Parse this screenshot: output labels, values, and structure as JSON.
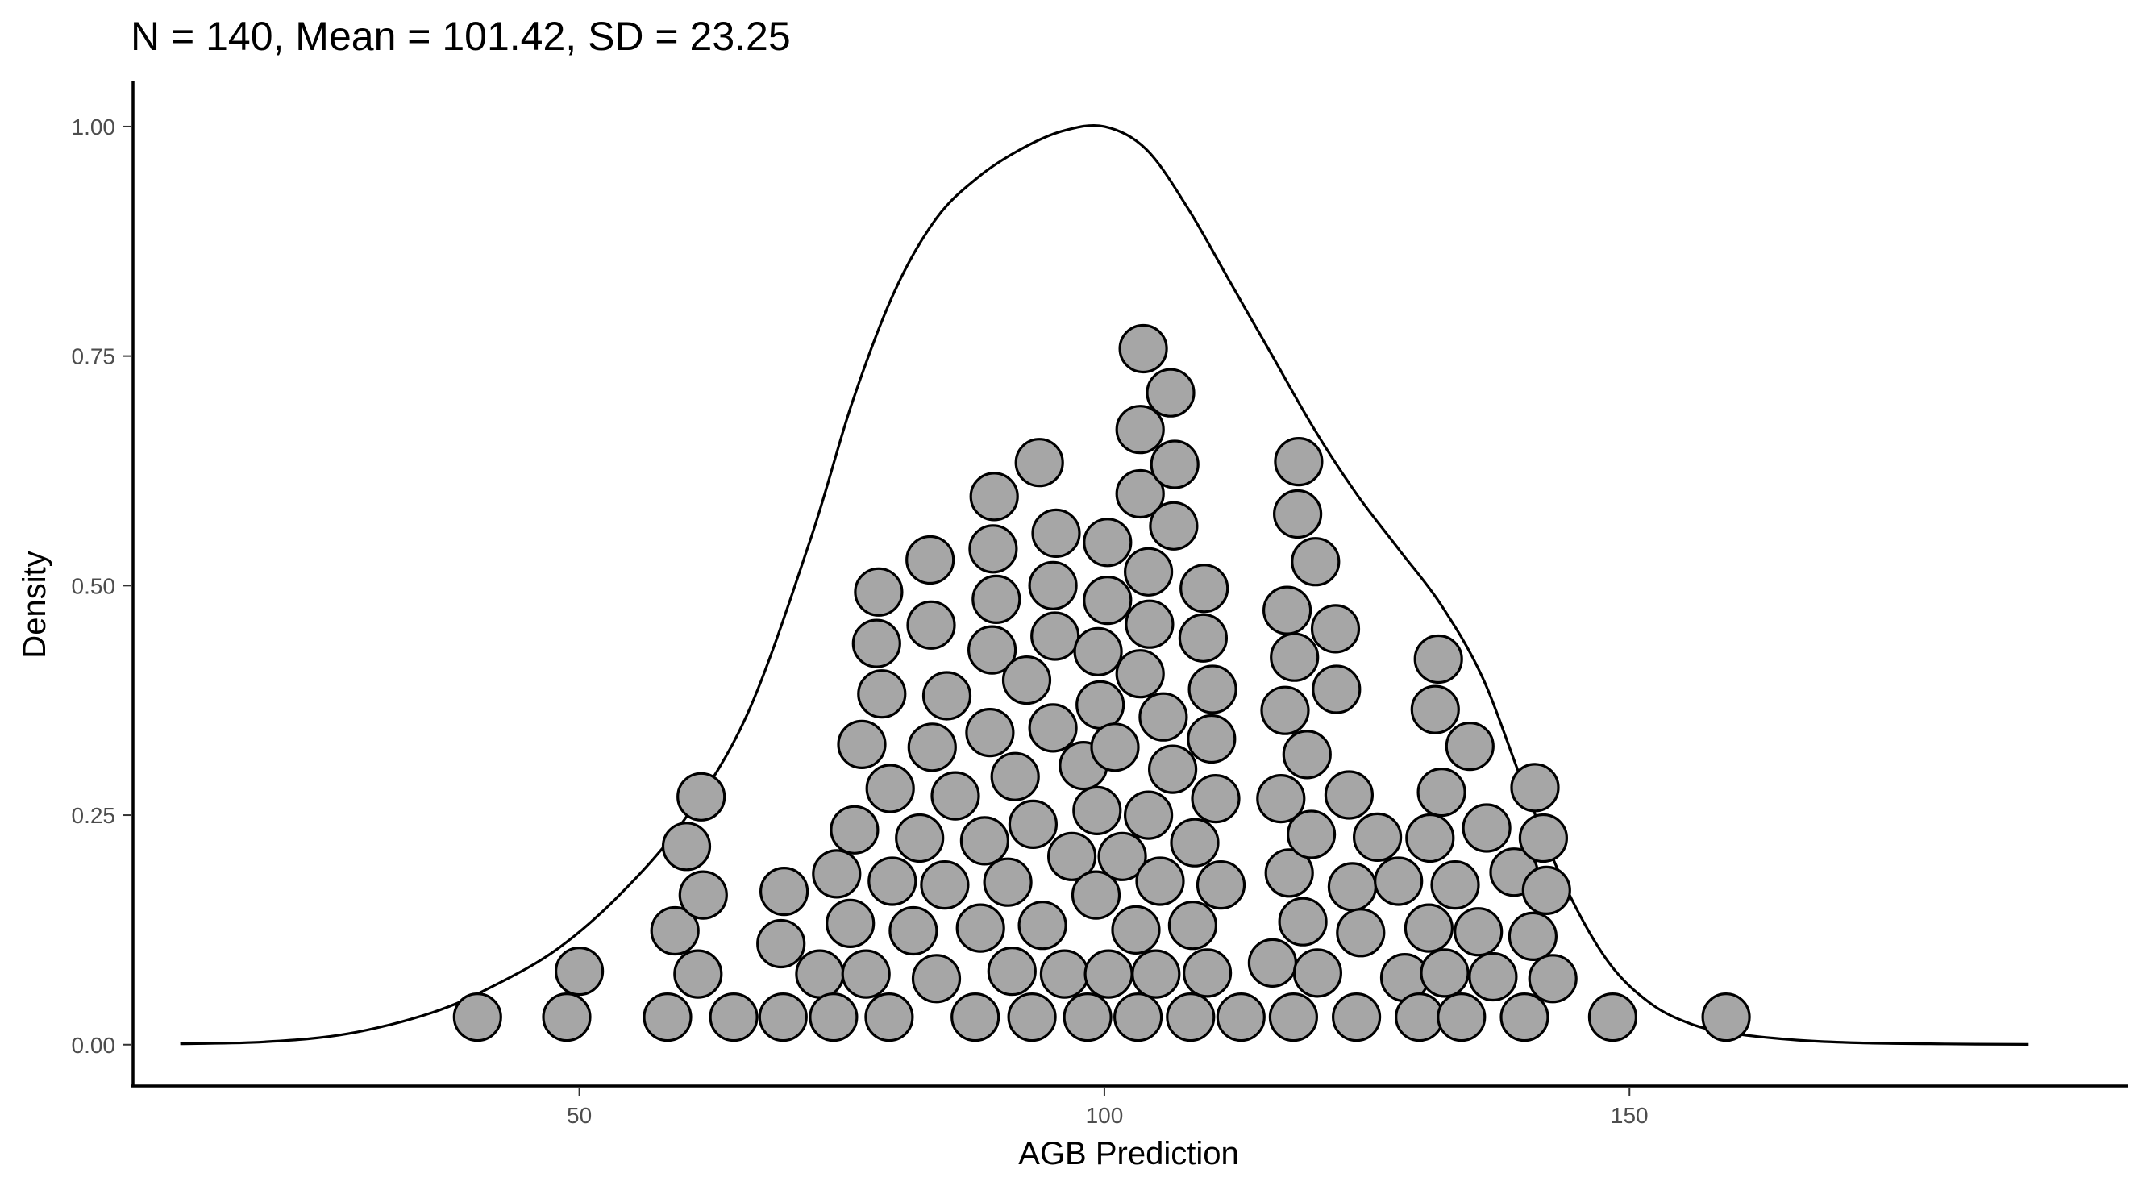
{
  "chart_data": {
    "type": "dotplot",
    "title": "N = 140, Mean = 101.42, SD = 23.25",
    "xlabel": "AGB Prediction",
    "ylabel": "Density",
    "xlim": [
      7.5,
      197.5
    ],
    "ylim": [
      -0.045,
      1.05
    ],
    "x_ticks": [
      50,
      100,
      150
    ],
    "x_tick_labels": [
      "50",
      "100",
      "150"
    ],
    "y_ticks": [
      0,
      0.25,
      0.5,
      0.75,
      1.0
    ],
    "y_tick_labels": [
      "0.00",
      "0.25",
      "0.50",
      "0.75",
      "1.00"
    ],
    "grid": false,
    "dot_fill": "#a6a6a6",
    "dot_stroke": "#000000",
    "density_curve": {
      "x": [
        12,
        20,
        28,
        36,
        42,
        48,
        54,
        60,
        66,
        72,
        76,
        80,
        84,
        88,
        92,
        96,
        100,
        104,
        108,
        112,
        116,
        120,
        124,
        128,
        132,
        136,
        140,
        144,
        148,
        152,
        156,
        160,
        166,
        172,
        180,
        188
      ],
      "y": [
        0.001,
        0.003,
        0.012,
        0.035,
        0.065,
        0.105,
        0.165,
        0.245,
        0.36,
        0.55,
        0.7,
        0.82,
        0.9,
        0.945,
        0.975,
        0.995,
        1.0,
        0.975,
        0.91,
        0.83,
        0.75,
        0.67,
        0.6,
        0.54,
        0.48,
        0.4,
        0.28,
        0.17,
        0.09,
        0.045,
        0.022,
        0.012,
        0.005,
        0.002,
        0.0008,
        0.0003
      ]
    },
    "dots": [
      [
        40.3,
        0.03
      ],
      [
        48.8,
        0.03
      ],
      [
        50.0,
        0.08
      ],
      [
        58.4,
        0.03
      ],
      [
        59.1,
        0.124
      ],
      [
        60.2,
        0.216
      ],
      [
        61.3,
        0.077
      ],
      [
        61.8,
        0.163
      ],
      [
        61.6,
        0.27
      ],
      [
        64.7,
        0.03
      ],
      [
        69.4,
        0.03
      ],
      [
        69.2,
        0.11
      ],
      [
        69.5,
        0.167
      ],
      [
        72.9,
        0.077
      ],
      [
        74.2,
        0.03
      ],
      [
        74.5,
        0.186
      ],
      [
        75.8,
        0.132
      ],
      [
        76.2,
        0.234
      ],
      [
        76.9,
        0.327
      ],
      [
        77.3,
        0.077
      ],
      [
        79.5,
        0.03
      ],
      [
        78.3,
        0.437
      ],
      [
        78.5,
        0.493
      ],
      [
        78.8,
        0.382
      ],
      [
        79.6,
        0.279
      ],
      [
        79.8,
        0.178
      ],
      [
        81.8,
        0.124
      ],
      [
        82.4,
        0.225
      ],
      [
        83.6,
        0.324
      ],
      [
        83.5,
        0.457
      ],
      [
        83.4,
        0.528
      ],
      [
        84.0,
        0.072
      ],
      [
        84.8,
        0.174
      ],
      [
        85.0,
        0.38
      ],
      [
        85.8,
        0.271
      ],
      [
        87.7,
        0.03
      ],
      [
        88.2,
        0.127
      ],
      [
        88.6,
        0.222
      ],
      [
        89.1,
        0.34
      ],
      [
        89.3,
        0.43
      ],
      [
        89.4,
        0.54
      ],
      [
        89.5,
        0.597
      ],
      [
        89.7,
        0.485
      ],
      [
        90.8,
        0.177
      ],
      [
        91.2,
        0.08
      ],
      [
        91.5,
        0.292
      ],
      [
        93.1,
        0.03
      ],
      [
        92.6,
        0.397
      ],
      [
        93.2,
        0.24
      ],
      [
        94.1,
        0.13
      ],
      [
        93.8,
        0.634
      ],
      [
        95.1,
        0.345
      ],
      [
        95.3,
        0.445
      ],
      [
        95.1,
        0.5
      ],
      [
        95.4,
        0.557
      ],
      [
        96.2,
        0.077
      ],
      [
        96.9,
        0.205
      ],
      [
        98.0,
        0.304
      ],
      [
        98.4,
        0.03
      ],
      [
        99.2,
        0.163
      ],
      [
        99.3,
        0.255
      ],
      [
        99.6,
        0.37
      ],
      [
        99.4,
        0.428
      ],
      [
        100.4,
        0.077
      ],
      [
        100.3,
        0.484
      ],
      [
        100.3,
        0.547
      ],
      [
        101.0,
        0.324
      ],
      [
        101.7,
        0.205
      ],
      [
        103.2,
        0.03
      ],
      [
        103.0,
        0.125
      ],
      [
        103.4,
        0.404
      ],
      [
        103.4,
        0.6
      ],
      [
        103.4,
        0.67
      ],
      [
        103.7,
        0.758
      ],
      [
        104.2,
        0.515
      ],
      [
        104.2,
        0.25
      ],
      [
        104.3,
        0.458
      ],
      [
        104.9,
        0.077
      ],
      [
        105.3,
        0.178
      ],
      [
        105.6,
        0.357
      ],
      [
        106.5,
        0.3
      ],
      [
        106.6,
        0.565
      ],
      [
        106.7,
        0.632
      ],
      [
        106.3,
        0.71
      ],
      [
        108.2,
        0.03
      ],
      [
        108.4,
        0.13
      ],
      [
        108.6,
        0.22
      ],
      [
        109.4,
        0.443
      ],
      [
        109.8,
        0.078
      ],
      [
        109.5,
        0.497
      ],
      [
        110.2,
        0.333
      ],
      [
        110.3,
        0.387
      ],
      [
        110.6,
        0.268
      ],
      [
        111.1,
        0.174
      ],
      [
        113.0,
        0.03
      ],
      [
        116.0,
        0.089
      ],
      [
        116.8,
        0.268
      ],
      [
        117.4,
        0.473
      ],
      [
        117.2,
        0.364
      ],
      [
        117.6,
        0.187
      ],
      [
        118.1,
        0.422
      ],
      [
        118.4,
        0.578
      ],
      [
        118.5,
        0.635
      ],
      [
        118.0,
        0.03
      ],
      [
        118.9,
        0.134
      ],
      [
        119.3,
        0.316
      ],
      [
        119.7,
        0.229
      ],
      [
        120.1,
        0.526
      ],
      [
        120.3,
        0.078
      ],
      [
        122.0,
        0.453
      ],
      [
        122.1,
        0.387
      ],
      [
        123.3,
        0.272
      ],
      [
        123.6,
        0.172
      ],
      [
        124.4,
        0.122
      ],
      [
        124.0,
        0.03
      ],
      [
        126.0,
        0.226
      ],
      [
        128.6,
        0.073
      ],
      [
        128.0,
        0.178
      ],
      [
        130.0,
        0.03
      ],
      [
        130.9,
        0.127
      ],
      [
        131.0,
        0.225
      ],
      [
        131.5,
        0.365
      ],
      [
        131.8,
        0.42
      ],
      [
        132.1,
        0.275
      ],
      [
        132.4,
        0.078
      ],
      [
        133.4,
        0.174
      ],
      [
        134.0,
        0.03
      ],
      [
        134.8,
        0.325
      ],
      [
        135.6,
        0.123
      ],
      [
        136.4,
        0.236
      ],
      [
        137.0,
        0.074
      ],
      [
        139.0,
        0.188
      ],
      [
        140.0,
        0.03
      ],
      [
        140.8,
        0.118
      ],
      [
        141.0,
        0.28
      ],
      [
        141.8,
        0.225
      ],
      [
        142.1,
        0.168
      ],
      [
        142.7,
        0.072
      ],
      [
        148.4,
        0.03
      ],
      [
        159.2,
        0.03
      ]
    ]
  }
}
